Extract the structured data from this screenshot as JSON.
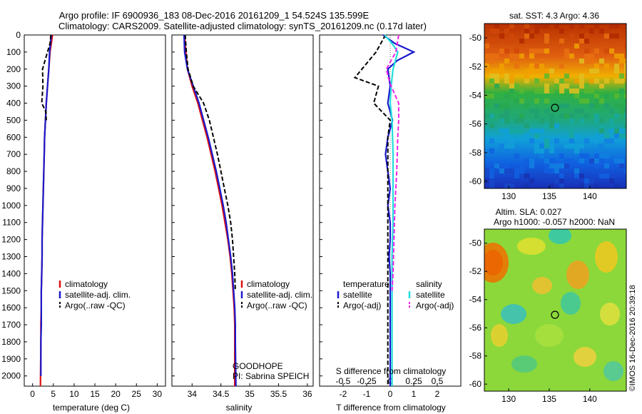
{
  "header": {
    "line1": "Argo profile: IF 6900936_183 08-Dec-2016 20161209_1 54.524S 135.599E",
    "line2": "Climatology: CARS2009. Satellite-adjusted climatology: synTS_20161209.nc (0.17d later)"
  },
  "colors": {
    "climatology": "#e01010",
    "satellite": "#1a1acc",
    "argo": "#000000",
    "salinity_satellite": "#22dddd",
    "salinity_argo": "#ee22ee"
  },
  "chart_data": [
    {
      "type": "line",
      "id": "temperature",
      "xlabel": "temperature (deg C)",
      "ylim": [
        2060,
        0
      ],
      "xlim": [
        -2,
        32
      ],
      "xticks": [
        "0",
        "5",
        "10",
        "15",
        "20",
        "25",
        "30"
      ],
      "yticks": [
        "0",
        "100",
        "200",
        "300",
        "400",
        "500",
        "600",
        "700",
        "800",
        "900",
        "1000",
        "1100",
        "1200",
        "1300",
        "1400",
        "1500",
        "1600",
        "1700",
        "1800",
        "1900",
        "2000"
      ],
      "legend": [
        "climatology",
        "satellite-adj. clim.",
        "Argo(..raw -QC)"
      ],
      "series": [
        {
          "name": "climatology",
          "style": "solid",
          "color": "#e01010",
          "x": [
            4.8,
            4.5,
            4.2,
            3.9,
            3.6,
            3.3,
            3.1,
            2.9,
            2.8,
            2.7,
            2.6,
            2.5,
            2.4,
            2.3,
            2.3,
            2.2,
            2.1,
            2.1,
            2.0,
            2.0,
            1.9
          ],
          "y": [
            0,
            50,
            100,
            200,
            300,
            400,
            500,
            600,
            700,
            800,
            900,
            1000,
            1100,
            1200,
            1300,
            1400,
            1500,
            1600,
            1700,
            1800,
            2060
          ]
        },
        {
          "name": "satellite-adj. clim.",
          "style": "solid",
          "color": "#1a1acc",
          "x": [
            4.5,
            4.3,
            4.1,
            3.9,
            3.6,
            3.3,
            3.1,
            2.9,
            2.8,
            2.7,
            2.6,
            2.5,
            2.4,
            2.3,
            2.3,
            2.2,
            2.1,
            2.1,
            2.1,
            2.0,
            2.0
          ],
          "y": [
            0,
            50,
            100,
            200,
            300,
            400,
            500,
            600,
            700,
            800,
            900,
            1000,
            1100,
            1200,
            1300,
            1400,
            1500,
            1600,
            1700,
            1800,
            2000
          ]
        },
        {
          "name": "Argo(..raw -QC)",
          "style": "dashed",
          "color": "#000000",
          "x": [
            4.4,
            4.2,
            3.6,
            2.4,
            2.5,
            2.2,
            3.2,
            3.3
          ],
          "y": [
            0,
            50,
            100,
            200,
            300,
            400,
            450,
            500
          ]
        }
      ]
    },
    {
      "type": "line",
      "id": "salinity",
      "xlabel": "salinity",
      "ylim": [
        2060,
        0
      ],
      "xlim": [
        33.65,
        36.1
      ],
      "xticks": [
        "34",
        "34.5",
        "35",
        "35.5",
        "36"
      ],
      "legend": [
        "climatology",
        "satellite-adj. clim.",
        "Argo(..raw -QC)"
      ],
      "annotations": [
        "GOODHOPE",
        "PI: Sabrina SPEICH"
      ],
      "series": [
        {
          "name": "climatology",
          "style": "solid",
          "color": "#e01010",
          "x": [
            33.87,
            33.89,
            33.92,
            34.0,
            34.1,
            34.18,
            34.26,
            34.33,
            34.4,
            34.46,
            34.52,
            34.57,
            34.62,
            34.66,
            34.69,
            34.71,
            34.73,
            34.74,
            34.74,
            34.74
          ],
          "y": [
            0,
            100,
            200,
            300,
            400,
            500,
            600,
            700,
            800,
            900,
            1000,
            1100,
            1200,
            1300,
            1400,
            1500,
            1600,
            1700,
            1800,
            2060
          ]
        },
        {
          "name": "satellite-adj. clim.",
          "style": "solid",
          "color": "#1a1acc",
          "x": [
            33.86,
            33.87,
            33.92,
            34.02,
            34.12,
            34.2,
            34.28,
            34.35,
            34.42,
            34.48,
            34.54,
            34.59,
            34.63,
            34.67,
            34.7,
            34.72,
            34.74,
            34.75,
            34.75,
            34.76
          ],
          "y": [
            0,
            100,
            200,
            300,
            400,
            500,
            600,
            700,
            800,
            900,
            1000,
            1100,
            1200,
            1300,
            1400,
            1500,
            1600,
            1700,
            1800,
            2060
          ]
        },
        {
          "name": "Argo(..raw -QC)",
          "style": "dashed",
          "color": "#000000",
          "x": [
            33.88,
            33.9,
            33.93,
            34.02,
            34.2,
            34.3,
            34.37,
            34.44,
            34.5,
            34.56,
            34.62,
            34.67,
            34.7,
            34.72,
            34.74,
            34.75
          ],
          "y": [
            0,
            100,
            200,
            300,
            400,
            500,
            600,
            700,
            800,
            900,
            1000,
            1100,
            1200,
            1300,
            1400,
            1500
          ]
        }
      ]
    },
    {
      "type": "line",
      "id": "differences",
      "xlabel": "T difference from climatology",
      "top_label": "S difference from climatology",
      "ylim": [
        2060,
        0
      ],
      "xlim": [
        -3,
        3
      ],
      "xticks": [
        "-2",
        "-1",
        "0",
        "1",
        "2"
      ],
      "top_xticks": [
        "-0.5",
        "-0.25",
        "0",
        "0.25",
        "0.5"
      ],
      "legend_groups": [
        {
          "title": "temperature",
          "items": [
            "satellite",
            "Argo(-adj)"
          ]
        },
        {
          "title": "salinity",
          "items": [
            "satellite",
            "Argo(-adj)"
          ]
        }
      ],
      "series": [
        {
          "name": "temperature satellite",
          "style": "solid",
          "color": "#1a1acc",
          "x": [
            -0.3,
            0.2,
            1.0,
            0.3,
            -0.1,
            0.0,
            -0.1,
            0.1,
            -0.1,
            -0.2,
            -0.1,
            0.0,
            -0.1,
            0.0,
            0.0,
            -0.05,
            0.0,
            0.0,
            0.0,
            0.0,
            0.0
          ],
          "y": [
            0,
            50,
            100,
            150,
            200,
            300,
            400,
            500,
            600,
            700,
            800,
            900,
            1000,
            1100,
            1200,
            1300,
            1400,
            1500,
            1600,
            1800,
            2060
          ]
        },
        {
          "name": "temperature Argo(-adj)",
          "style": "dashed",
          "color": "#000000",
          "x": [
            -0.2,
            -0.6,
            -1.2,
            -1.5,
            -0.5,
            -0.7,
            0.0,
            -0.1,
            -0.1,
            -0.1,
            -0.1,
            -0.1,
            -0.1,
            -0.1
          ],
          "y": [
            0,
            100,
            200,
            250,
            300,
            400,
            500,
            600,
            800,
            1000,
            1200,
            1400,
            1700,
            2060
          ]
        },
        {
          "name": "salinity satellite",
          "style": "solid",
          "color": "#22dddd",
          "x": [
            -0.06,
            0.02,
            0.08,
            0.03,
            0.01,
            0.0,
            0.02,
            0.03,
            0.03,
            0.03,
            0.02,
            0.02,
            0.02,
            0.02,
            0.02
          ],
          "y": [
            0,
            50,
            100,
            200,
            300,
            400,
            500,
            700,
            900,
            1100,
            1300,
            1500,
            1700,
            1900,
            2060
          ]
        },
        {
          "name": "salinity Argo(-adj)",
          "style": "dashed",
          "color": "#ee22ee",
          "x": [
            0.09,
            0.06,
            0.01,
            -0.04,
            -0.02,
            0.01,
            0.09,
            0.09,
            0.08,
            0.07,
            0.05,
            0.04,
            0.03,
            0.02
          ],
          "y": [
            0,
            100,
            150,
            200,
            250,
            300,
            400,
            500,
            600,
            800,
            1000,
            1200,
            1400,
            1500
          ]
        }
      ]
    },
    {
      "type": "heatmap",
      "id": "sst_map",
      "title": "sat. SST: 4.3 Argo: 4.36",
      "xlim": [
        127,
        144.5
      ],
      "ylim": [
        -60.5,
        -49
      ],
      "xticks": [
        "130",
        "135",
        "140"
      ],
      "yticks": [
        "-50",
        "-52",
        "-54",
        "-56",
        "-58",
        "-60"
      ],
      "marker": {
        "lon": 135.6,
        "lat": -54.5
      }
    },
    {
      "type": "heatmap",
      "id": "sla_map",
      "title_line1": "Altim. SLA: 0.027",
      "title_line2": "Argo h1000: -0.057 h2000: NaN",
      "xlim": [
        127,
        144.5
      ],
      "ylim": [
        -60.5,
        -49
      ],
      "xticks": [
        "130",
        "135",
        "140"
      ],
      "yticks": [
        "-50",
        "-52",
        "-54",
        "-56",
        "-58",
        "-60"
      ],
      "marker": {
        "lon": 135.6,
        "lat": -54.5
      }
    }
  ],
  "footer": {
    "stamp": "©IMOS 16-Dec-2016 20:39:18"
  }
}
